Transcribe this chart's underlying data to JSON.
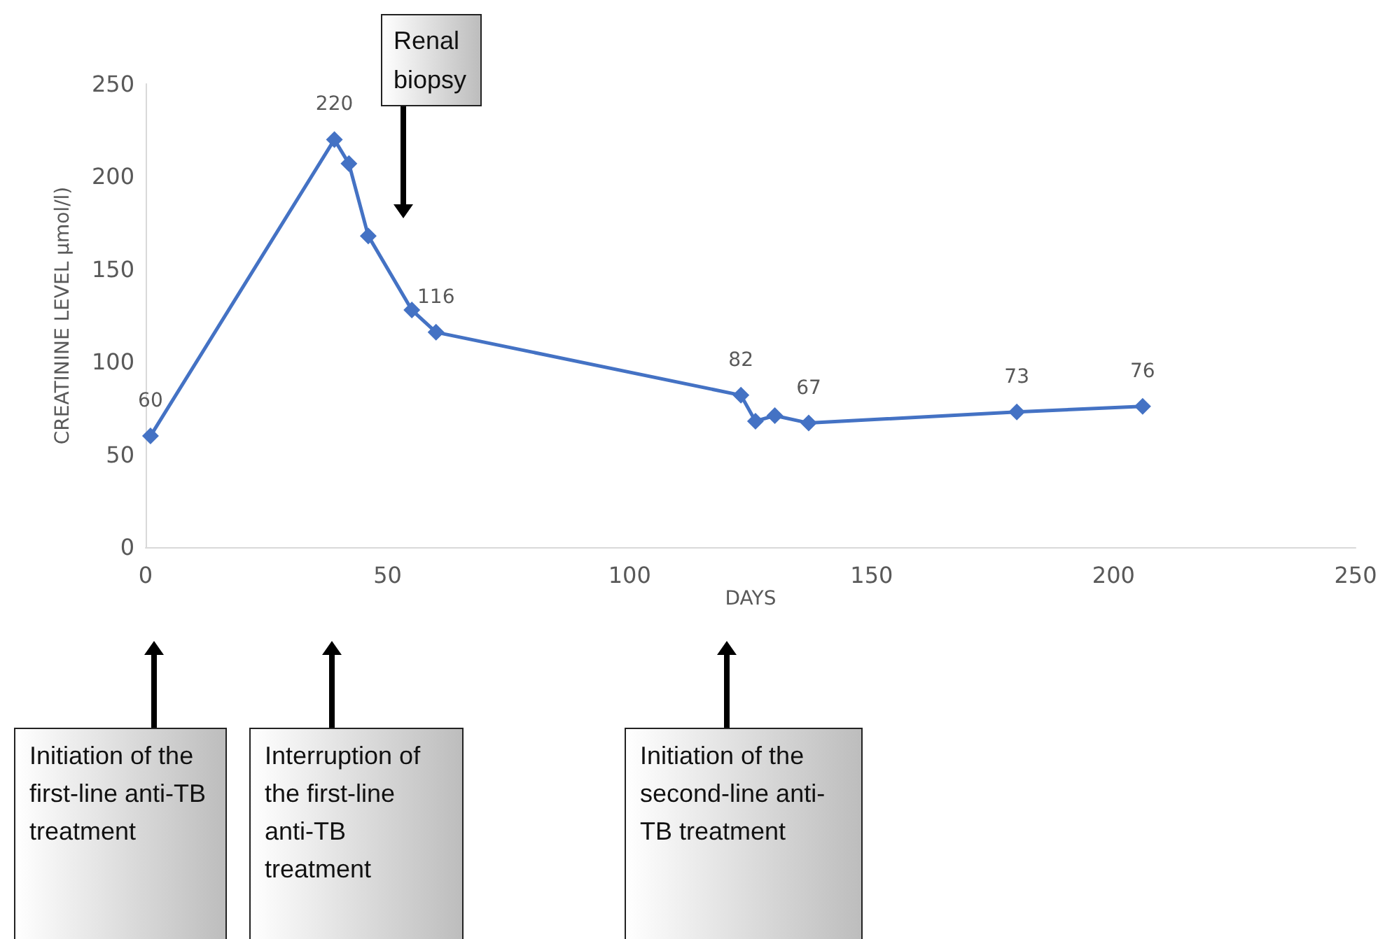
{
  "chart_data": {
    "type": "line",
    "xlabel": "DAYS",
    "ylabel": "CREATININE LEVEL µmol/l)",
    "x": [
      1,
      39,
      42,
      46,
      55,
      60,
      123,
      126,
      130,
      137,
      180,
      206
    ],
    "series": [
      {
        "color": "#4472c4",
        "values": [
          60,
          220,
          207,
          168,
          128,
          116,
          82,
          68,
          71,
          67,
          73,
          76
        ],
        "value_labels": [
          "60",
          "220",
          null,
          null,
          null,
          "116",
          "82",
          null,
          null,
          "67",
          "73",
          "76"
        ]
      }
    ],
    "xlim": [
      0,
      250
    ],
    "xticks": [
      0,
      50,
      100,
      150,
      200,
      250
    ],
    "ylim": [
      0,
      250
    ],
    "yticks": [
      0,
      50,
      100,
      150,
      200,
      250
    ],
    "grid": false,
    "marker": "diamond",
    "line_style": "solid",
    "annotations": [
      "Renal biopsy",
      "Initiation of the first-line anti-TB treatment",
      "Interruption of the first-line anti-TB treatment",
      "Initiation of the second-line anti-TB treatment"
    ]
  }
}
